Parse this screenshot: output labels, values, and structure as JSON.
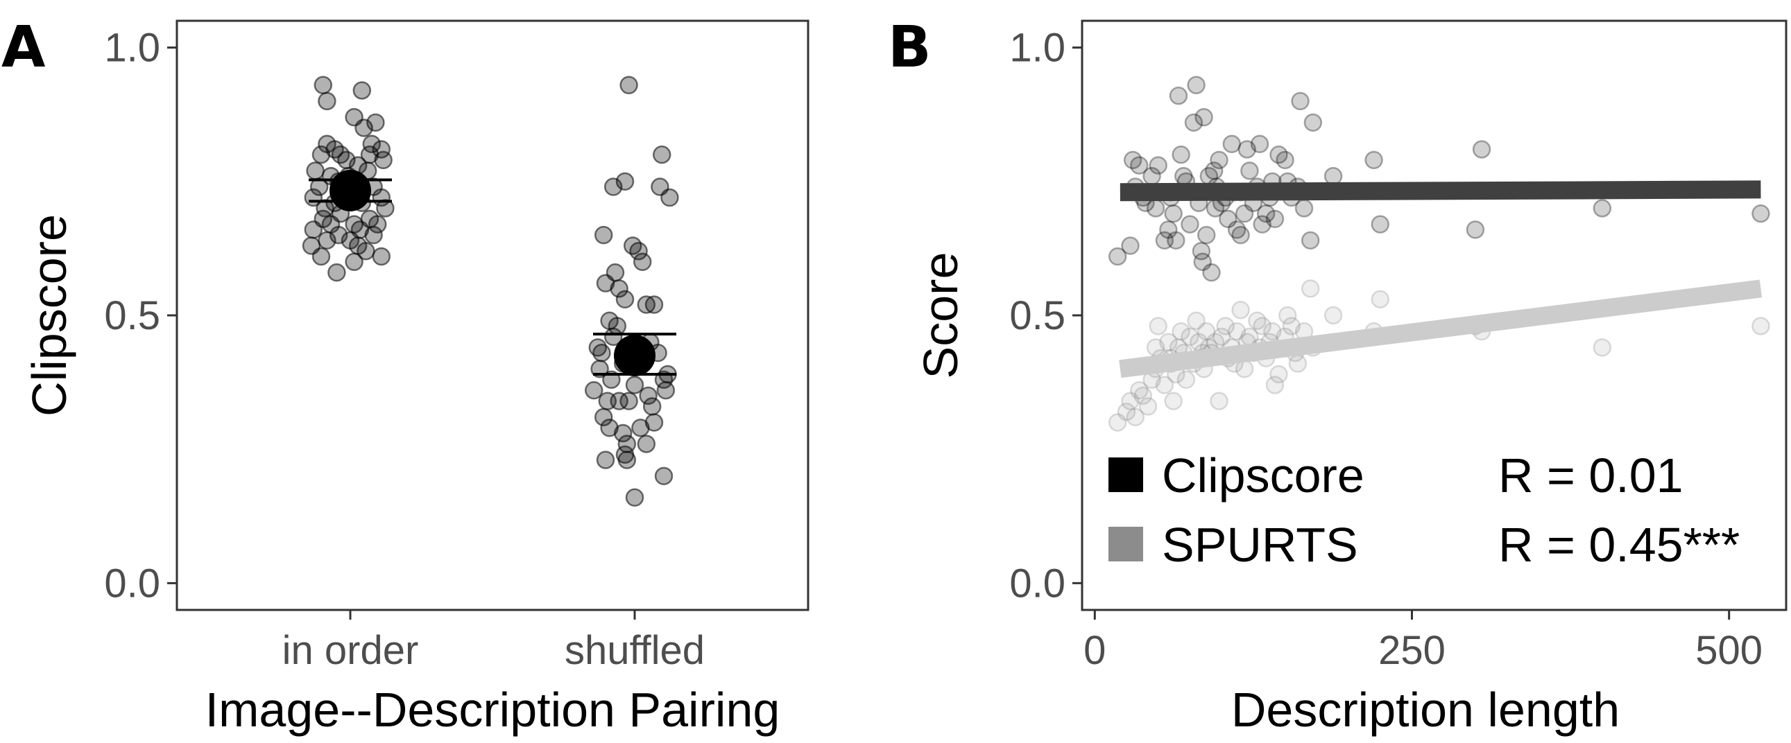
{
  "chart_data": [
    {
      "panel_label": "A",
      "type": "scatter",
      "xlabel": "Image--Description Pairing",
      "ylabel": "Clipscore",
      "categories": [
        "in order",
        "shuffled"
      ],
      "ylim": [
        -0.05,
        1.05
      ],
      "yticks": [
        0.0,
        0.5,
        1.0
      ],
      "ytick_labels": [
        "0.0",
        "0.5",
        "1.0"
      ],
      "grid": false,
      "point_color": "#000000",
      "point_opacity": 0.3,
      "series": [
        {
          "category": "in order",
          "mean": 0.733,
          "ci": [
            0.713,
            0.753
          ],
          "points": [
            {
              "dx": -0.14,
              "y": 0.93
            },
            {
              "dx": -0.12,
              "y": 0.9
            },
            {
              "dx": 0.06,
              "y": 0.92
            },
            {
              "dx": 0.02,
              "y": 0.87
            },
            {
              "dx": 0.07,
              "y": 0.85
            },
            {
              "dx": 0.13,
              "y": 0.86
            },
            {
              "dx": 0.11,
              "y": 0.82
            },
            {
              "dx": 0.16,
              "y": 0.81
            },
            {
              "dx": 0.17,
              "y": 0.79
            },
            {
              "dx": -0.15,
              "y": 0.8
            },
            {
              "dx": -0.12,
              "y": 0.82
            },
            {
              "dx": -0.08,
              "y": 0.81
            },
            {
              "dx": -0.05,
              "y": 0.8
            },
            {
              "dx": -0.02,
              "y": 0.79
            },
            {
              "dx": 0.04,
              "y": 0.78
            },
            {
              "dx": 0.09,
              "y": 0.77
            },
            {
              "dx": -0.18,
              "y": 0.77
            },
            {
              "dx": -0.1,
              "y": 0.76
            },
            {
              "dx": -0.16,
              "y": 0.74
            },
            {
              "dx": -0.19,
              "y": 0.72
            },
            {
              "dx": -0.06,
              "y": 0.75
            },
            {
              "dx": 0.12,
              "y": 0.74
            },
            {
              "dx": 0.16,
              "y": 0.72
            },
            {
              "dx": 0.18,
              "y": 0.7
            },
            {
              "dx": -0.13,
              "y": 0.7
            },
            {
              "dx": -0.08,
              "y": 0.71
            },
            {
              "dx": 0.06,
              "y": 0.71
            },
            {
              "dx": -0.14,
              "y": 0.68
            },
            {
              "dx": -0.1,
              "y": 0.67
            },
            {
              "dx": -0.05,
              "y": 0.69
            },
            {
              "dx": 0.02,
              "y": 0.67
            },
            {
              "dx": 0.1,
              "y": 0.68
            },
            {
              "dx": 0.14,
              "y": 0.67
            },
            {
              "dx": -0.19,
              "y": 0.66
            },
            {
              "dx": -0.06,
              "y": 0.65
            },
            {
              "dx": 0.0,
              "y": 0.64
            },
            {
              "dx": 0.05,
              "y": 0.66
            },
            {
              "dx": 0.12,
              "y": 0.65
            },
            {
              "dx": -0.12,
              "y": 0.64
            },
            {
              "dx": -0.2,
              "y": 0.63
            },
            {
              "dx": 0.04,
              "y": 0.63
            },
            {
              "dx": 0.08,
              "y": 0.62
            },
            {
              "dx": -0.15,
              "y": 0.61
            },
            {
              "dx": 0.02,
              "y": 0.6
            },
            {
              "dx": 0.16,
              "y": 0.61
            },
            {
              "dx": -0.07,
              "y": 0.58
            },
            {
              "dx": -0.01,
              "y": 0.76
            },
            {
              "dx": 0.1,
              "y": 0.8
            }
          ]
        },
        {
          "category": "shuffled",
          "mean": 0.425,
          "ci": [
            0.39,
            0.465
          ],
          "points": [
            {
              "dx": -0.03,
              "y": 0.93
            },
            {
              "dx": 0.14,
              "y": 0.8
            },
            {
              "dx": -0.05,
              "y": 0.75
            },
            {
              "dx": -0.11,
              "y": 0.74
            },
            {
              "dx": 0.13,
              "y": 0.74
            },
            {
              "dx": 0.18,
              "y": 0.72
            },
            {
              "dx": -0.16,
              "y": 0.65
            },
            {
              "dx": -0.01,
              "y": 0.63
            },
            {
              "dx": 0.02,
              "y": 0.62
            },
            {
              "dx": 0.04,
              "y": 0.6
            },
            {
              "dx": -0.1,
              "y": 0.58
            },
            {
              "dx": -0.15,
              "y": 0.56
            },
            {
              "dx": -0.08,
              "y": 0.55
            },
            {
              "dx": -0.05,
              "y": 0.53
            },
            {
              "dx": 0.06,
              "y": 0.52
            },
            {
              "dx": 0.1,
              "y": 0.52
            },
            {
              "dx": -0.13,
              "y": 0.49
            },
            {
              "dx": -0.09,
              "y": 0.48
            },
            {
              "dx": -0.19,
              "y": 0.44
            },
            {
              "dx": -0.17,
              "y": 0.43
            },
            {
              "dx": -0.11,
              "y": 0.46
            },
            {
              "dx": -0.06,
              "y": 0.41
            },
            {
              "dx": 0.12,
              "y": 0.43
            },
            {
              "dx": -0.18,
              "y": 0.4
            },
            {
              "dx": 0.17,
              "y": 0.39
            },
            {
              "dx": 0.15,
              "y": 0.38
            },
            {
              "dx": -0.12,
              "y": 0.38
            },
            {
              "dx": -0.21,
              "y": 0.36
            },
            {
              "dx": -0.14,
              "y": 0.34
            },
            {
              "dx": -0.08,
              "y": 0.34
            },
            {
              "dx": -0.03,
              "y": 0.34
            },
            {
              "dx": 0.07,
              "y": 0.35
            },
            {
              "dx": 0.16,
              "y": 0.36
            },
            {
              "dx": 0.0,
              "y": 0.37
            },
            {
              "dx": 0.09,
              "y": 0.33
            },
            {
              "dx": -0.16,
              "y": 0.31
            },
            {
              "dx": -0.13,
              "y": 0.29
            },
            {
              "dx": 0.03,
              "y": 0.29
            },
            {
              "dx": 0.1,
              "y": 0.3
            },
            {
              "dx": -0.06,
              "y": 0.28
            },
            {
              "dx": -0.04,
              "y": 0.26
            },
            {
              "dx": 0.06,
              "y": 0.26
            },
            {
              "dx": -0.05,
              "y": 0.24
            },
            {
              "dx": -0.15,
              "y": 0.23
            },
            {
              "dx": -0.04,
              "y": 0.23
            },
            {
              "dx": 0.15,
              "y": 0.2
            },
            {
              "dx": 0.0,
              "y": 0.16
            },
            {
              "dx": 0.08,
              "y": 0.45
            }
          ]
        }
      ]
    },
    {
      "panel_label": "B",
      "type": "scatter",
      "xlabel": "Description length",
      "ylabel": "Score",
      "xlim": [
        -10,
        545
      ],
      "ylim": [
        -0.05,
        1.05
      ],
      "xticks": [
        0,
        250,
        500
      ],
      "xtick_labels": [
        "0",
        "250",
        "500"
      ],
      "yticks": [
        0.0,
        0.5,
        1.0
      ],
      "ytick_labels": [
        "0.0",
        "0.5",
        "1.0"
      ],
      "grid": false,
      "legend_position": "bottom-left",
      "series": [
        {
          "name": "Clipscore",
          "color": "#000000",
          "line_color": "#404040",
          "point_opacity": 0.18,
          "r_label": "R = 0.01",
          "fit": {
            "x": [
              20,
              525
            ],
            "y": [
              0.73,
              0.735
            ]
          },
          "points": [
            [
              18,
              0.61
            ],
            [
              28,
              0.63
            ],
            [
              30,
              0.79
            ],
            [
              35,
              0.78
            ],
            [
              32,
              0.74
            ],
            [
              38,
              0.72
            ],
            [
              40,
              0.71
            ],
            [
              45,
              0.76
            ],
            [
              48,
              0.7
            ],
            [
              50,
              0.78
            ],
            [
              52,
              0.73
            ],
            [
              55,
              0.64
            ],
            [
              58,
              0.66
            ],
            [
              60,
              0.73
            ],
            [
              62,
              0.69
            ],
            [
              64,
              0.64
            ],
            [
              66,
              0.91
            ],
            [
              68,
              0.8
            ],
            [
              70,
              0.76
            ],
            [
              72,
              0.75
            ],
            [
              75,
              0.67
            ],
            [
              78,
              0.86
            ],
            [
              80,
              0.93
            ],
            [
              82,
              0.71
            ],
            [
              84,
              0.62
            ],
            [
              85,
              0.6
            ],
            [
              86,
              0.87
            ],
            [
              88,
              0.65
            ],
            [
              90,
              0.76
            ],
            [
              92,
              0.58
            ],
            [
              94,
              0.77
            ],
            [
              96,
              0.74
            ],
            [
              98,
              0.79
            ],
            [
              100,
              0.71
            ],
            [
              103,
              0.72
            ],
            [
              105,
              0.68
            ],
            [
              108,
              0.82
            ],
            [
              110,
              0.73
            ],
            [
              112,
              0.66
            ],
            [
              115,
              0.65
            ],
            [
              118,
              0.69
            ],
            [
              120,
              0.81
            ],
            [
              122,
              0.77
            ],
            [
              125,
              0.71
            ],
            [
              128,
              0.74
            ],
            [
              130,
              0.82
            ],
            [
              132,
              0.67
            ],
            [
              135,
              0.69
            ],
            [
              138,
              0.72
            ],
            [
              140,
              0.75
            ],
            [
              142,
              0.68
            ],
            [
              145,
              0.8
            ],
            [
              150,
              0.79
            ],
            [
              152,
              0.75
            ],
            [
              155,
              0.72
            ],
            [
              160,
              0.74
            ],
            [
              162,
              0.9
            ],
            [
              165,
              0.7
            ],
            [
              170,
              0.64
            ],
            [
              172,
              0.86
            ],
            [
              188,
              0.76
            ],
            [
              220,
              0.79
            ],
            [
              225,
              0.67
            ],
            [
              300,
              0.66
            ],
            [
              305,
              0.81
            ],
            [
              400,
              0.7
            ],
            [
              525,
              0.69
            ],
            [
              115,
              0.73
            ],
            [
              60,
              0.72
            ],
            [
              95,
              0.7
            ]
          ]
        },
        {
          "name": "SPURTS",
          "color": "#8c8c8c",
          "line_color": "#cccccc",
          "point_opacity": 0.15,
          "r_label": "R = 0.45***",
          "fit": {
            "x": [
              20,
              525
            ],
            "y": [
              0.4,
              0.55
            ]
          },
          "points": [
            [
              18,
              0.3
            ],
            [
              25,
              0.32
            ],
            [
              28,
              0.34
            ],
            [
              32,
              0.31
            ],
            [
              35,
              0.36
            ],
            [
              38,
              0.35
            ],
            [
              42,
              0.33
            ],
            [
              45,
              0.38
            ],
            [
              48,
              0.4
            ],
            [
              50,
              0.48
            ],
            [
              52,
              0.42
            ],
            [
              55,
              0.37
            ],
            [
              58,
              0.45
            ],
            [
              60,
              0.41
            ],
            [
              62,
              0.34
            ],
            [
              64,
              0.39
            ],
            [
              66,
              0.44
            ],
            [
              68,
              0.47
            ],
            [
              70,
              0.43
            ],
            [
              72,
              0.38
            ],
            [
              75,
              0.46
            ],
            [
              78,
              0.41
            ],
            [
              80,
              0.49
            ],
            [
              82,
              0.45
            ],
            [
              84,
              0.42
            ],
            [
              86,
              0.4
            ],
            [
              88,
              0.47
            ],
            [
              90,
              0.44
            ],
            [
              92,
              0.43
            ],
            [
              95,
              0.45
            ],
            [
              98,
              0.34
            ],
            [
              100,
              0.46
            ],
            [
              103,
              0.48
            ],
            [
              105,
              0.42
            ],
            [
              108,
              0.44
            ],
            [
              110,
              0.41
            ],
            [
              112,
              0.47
            ],
            [
              115,
              0.51
            ],
            [
              118,
              0.4
            ],
            [
              120,
              0.45
            ],
            [
              122,
              0.46
            ],
            [
              125,
              0.43
            ],
            [
              128,
              0.49
            ],
            [
              130,
              0.44
            ],
            [
              132,
              0.48
            ],
            [
              135,
              0.42
            ],
            [
              138,
              0.45
            ],
            [
              140,
              0.47
            ],
            [
              142,
              0.37
            ],
            [
              145,
              0.39
            ],
            [
              150,
              0.46
            ],
            [
              152,
              0.5
            ],
            [
              155,
              0.48
            ],
            [
              158,
              0.43
            ],
            [
              160,
              0.41
            ],
            [
              165,
              0.47
            ],
            [
              170,
              0.55
            ],
            [
              172,
              0.44
            ],
            [
              188,
              0.5
            ],
            [
              220,
              0.47
            ],
            [
              225,
              0.53
            ],
            [
              300,
              0.48
            ],
            [
              305,
              0.47
            ],
            [
              400,
              0.44
            ],
            [
              525,
              0.48
            ],
            [
              60,
              0.42
            ],
            [
              85,
              0.43
            ],
            [
              48,
              0.44
            ]
          ]
        }
      ]
    }
  ]
}
